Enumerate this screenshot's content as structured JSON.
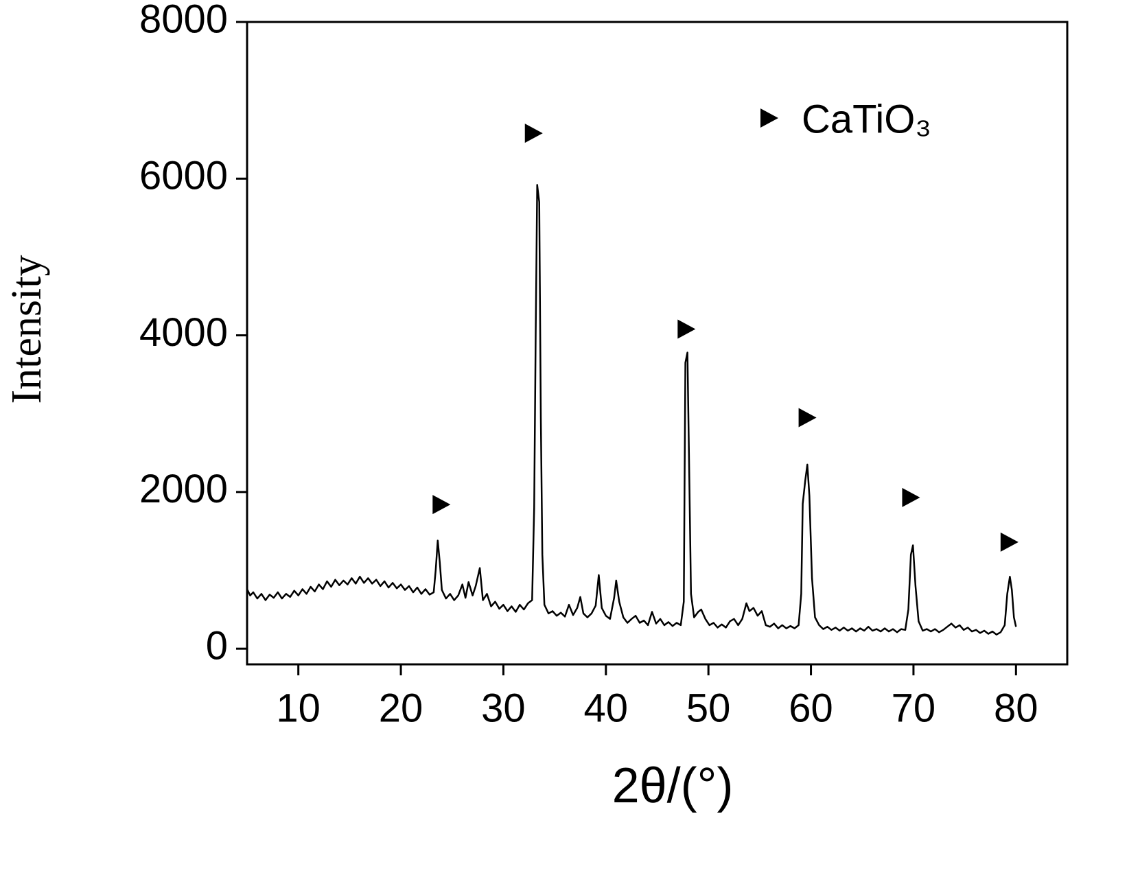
{
  "chart_data": {
    "type": "line",
    "xlabel": "2θ/(°)",
    "ylabel": "Intensity",
    "xlim": [
      5,
      85
    ],
    "ylim": [
      -200,
      8000
    ],
    "xticks": [
      10,
      20,
      30,
      40,
      50,
      60,
      70,
      80
    ],
    "yticks": [
      0,
      2000,
      4000,
      6000,
      8000
    ],
    "x": [
      5,
      5.3,
      5.6,
      6,
      6.4,
      6.8,
      7.2,
      7.6,
      8,
      8.4,
      8.8,
      9.2,
      9.6,
      10,
      10.4,
      10.8,
      11.2,
      11.6,
      12,
      12.4,
      12.8,
      13.2,
      13.6,
      14,
      14.4,
      14.8,
      15.2,
      15.6,
      16,
      16.4,
      16.8,
      17.2,
      17.6,
      18,
      18.4,
      18.8,
      19.2,
      19.6,
      20,
      20.4,
      20.8,
      21.2,
      21.6,
      22,
      22.4,
      22.8,
      23.2,
      23.4,
      23.6,
      23.8,
      24,
      24.4,
      24.8,
      25.2,
      25.6,
      26,
      26.3,
      26.6,
      27,
      27.3,
      27.7,
      28,
      28.4,
      28.8,
      29.2,
      29.6,
      30,
      30.4,
      30.8,
      31.2,
      31.6,
      32,
      32.4,
      32.8,
      33.0,
      33.15,
      33.3,
      33.5,
      33.65,
      33.8,
      34,
      34.4,
      34.8,
      35.2,
      35.6,
      36,
      36.4,
      36.8,
      37.2,
      37.5,
      37.8,
      38.2,
      38.6,
      39,
      39.3,
      39.6,
      40,
      40.4,
      40.8,
      41,
      41.3,
      41.7,
      42.1,
      42.5,
      42.9,
      43.3,
      43.7,
      44.1,
      44.5,
      44.9,
      45.3,
      45.7,
      46.1,
      46.5,
      46.9,
      47.3,
      47.6,
      47.75,
      47.95,
      48.1,
      48.3,
      48.6,
      49,
      49.3,
      49.7,
      50.1,
      50.5,
      50.9,
      51.3,
      51.7,
      52.1,
      52.5,
      52.9,
      53.3,
      53.7,
      54,
      54.4,
      54.8,
      55.2,
      55.6,
      56,
      56.4,
      56.8,
      57.2,
      57.6,
      58,
      58.4,
      58.8,
      59.05,
      59.2,
      59.45,
      59.65,
      59.85,
      60.1,
      60.4,
      60.8,
      61.2,
      61.6,
      62,
      62.4,
      62.8,
      63.2,
      63.6,
      64,
      64.4,
      64.8,
      65.2,
      65.6,
      66,
      66.4,
      66.8,
      67.2,
      67.6,
      68,
      68.4,
      68.8,
      69.2,
      69.5,
      69.75,
      69.95,
      70.2,
      70.5,
      70.9,
      71.3,
      71.7,
      72.1,
      72.5,
      72.9,
      73.3,
      73.7,
      74.1,
      74.5,
      74.9,
      75.3,
      75.7,
      76.1,
      76.5,
      76.9,
      77.3,
      77.7,
      78.1,
      78.5,
      78.9,
      79.15,
      79.4,
      79.6,
      79.8,
      80
    ],
    "series": [
      {
        "color": "#000000",
        "values": [
          760,
          680,
          720,
          640,
          700,
          620,
          690,
          650,
          720,
          640,
          700,
          660,
          740,
          680,
          760,
          700,
          790,
          730,
          820,
          760,
          860,
          790,
          880,
          810,
          870,
          820,
          900,
          830,
          920,
          840,
          900,
          830,
          880,
          800,
          860,
          780,
          840,
          770,
          820,
          750,
          800,
          720,
          780,
          700,
          760,
          690,
          720,
          1000,
          1380,
          1100,
          750,
          640,
          700,
          620,
          680,
          820,
          650,
          850,
          680,
          800,
          1030,
          620,
          700,
          540,
          600,
          510,
          560,
          480,
          540,
          470,
          560,
          500,
          580,
          620,
          1800,
          4000,
          5920,
          5700,
          2950,
          1200,
          560,
          450,
          480,
          420,
          460,
          410,
          560,
          430,
          520,
          660,
          450,
          400,
          450,
          550,
          940,
          520,
          420,
          380,
          650,
          870,
          600,
          400,
          330,
          380,
          420,
          330,
          360,
          300,
          470,
          320,
          380,
          300,
          340,
          290,
          330,
          300,
          600,
          3650,
          3780,
          2500,
          700,
          400,
          470,
          500,
          380,
          300,
          330,
          270,
          310,
          270,
          350,
          380,
          300,
          380,
          580,
          480,
          520,
          420,
          480,
          300,
          280,
          320,
          260,
          300,
          260,
          290,
          260,
          300,
          700,
          1850,
          2150,
          2350,
          1950,
          900,
          400,
          300,
          250,
          280,
          240,
          270,
          230,
          270,
          230,
          260,
          220,
          260,
          230,
          280,
          230,
          250,
          220,
          260,
          220,
          250,
          210,
          250,
          240,
          500,
          1200,
          1320,
          800,
          350,
          230,
          250,
          220,
          250,
          210,
          240,
          280,
          320,
          270,
          300,
          240,
          270,
          220,
          240,
          200,
          230,
          190,
          220,
          180,
          210,
          300,
          700,
          920,
          750,
          400,
          280
        ]
      }
    ],
    "markers": {
      "name": "CaTiO₃",
      "color": "#000000",
      "x": [
        23.9,
        32.9,
        47.8,
        59.6,
        69.7,
        79.3
      ],
      "y": [
        1840,
        6580,
        4080,
        2950,
        1930,
        1360
      ]
    }
  }
}
